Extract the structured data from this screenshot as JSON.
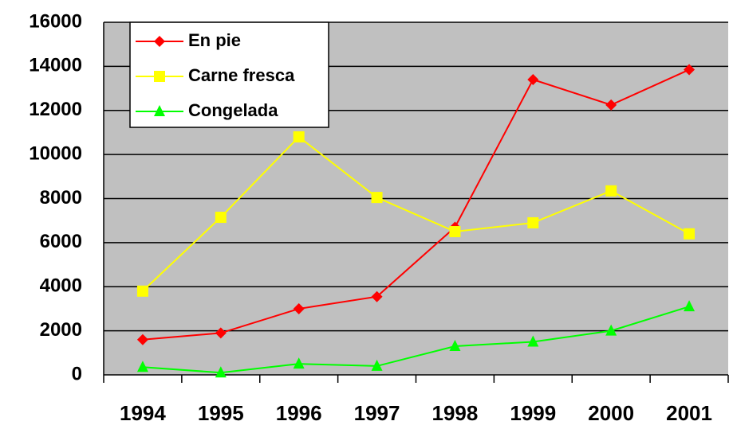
{
  "chart_data": {
    "type": "line",
    "categories": [
      "1994",
      "1995",
      "1996",
      "1997",
      "1998",
      "1999",
      "2000",
      "2001"
    ],
    "series": [
      {
        "name": "En pie",
        "color": "#ff0000",
        "marker": "diamond",
        "values": [
          1600,
          1900,
          3000,
          3550,
          6700,
          13400,
          12250,
          13850
        ]
      },
      {
        "name": "Carne fresca",
        "color": "#ffff00",
        "marker": "square",
        "values": [
          3800,
          7150,
          10800,
          8050,
          6500,
          6900,
          8350,
          6400
        ]
      },
      {
        "name": "Congelada",
        "color": "#00ff00",
        "marker": "triangle",
        "values": [
          350,
          100,
          500,
          400,
          1300,
          1500,
          2000,
          3100
        ]
      }
    ],
    "ylim": [
      0,
      16000
    ],
    "yticks": [
      0,
      2000,
      4000,
      6000,
      8000,
      10000,
      12000,
      14000,
      16000
    ],
    "grid": true,
    "legend": "top-left",
    "background": "#c0c0c0"
  }
}
